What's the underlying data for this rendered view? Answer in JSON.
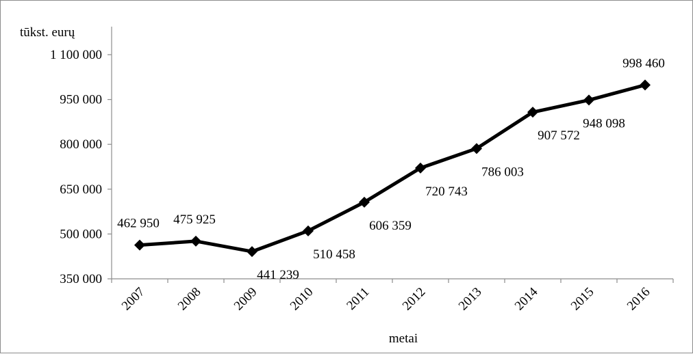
{
  "chart_data": {
    "type": "line",
    "title": "",
    "ylabel": "tūkst. eurų",
    "xlabel": "metai",
    "ylim": [
      350000,
      1100000
    ],
    "yticks": [
      350000,
      500000,
      650000,
      800000,
      950000,
      1100000
    ],
    "ytick_labels": [
      "350 000",
      "500 000",
      "650 000",
      "800 000",
      "950 000",
      "1 100 000"
    ],
    "categories": [
      "2007",
      "2008",
      "2009",
      "2010",
      "2011",
      "2012",
      "2013",
      "2014",
      "2015",
      "2016"
    ],
    "series": [
      {
        "values": [
          462950,
          475925,
          441239,
          510458,
          606359,
          720743,
          786003,
          907572,
          948098,
          998460
        ],
        "data_labels": [
          "462 950",
          "475 925",
          "441 239",
          "510 458",
          "606 359",
          "720 743",
          "786 003",
          "907 572",
          "948 098",
          "998 460"
        ],
        "color": "#000000",
        "marker": "diamond"
      }
    ],
    "grid": false,
    "legend": "none"
  }
}
